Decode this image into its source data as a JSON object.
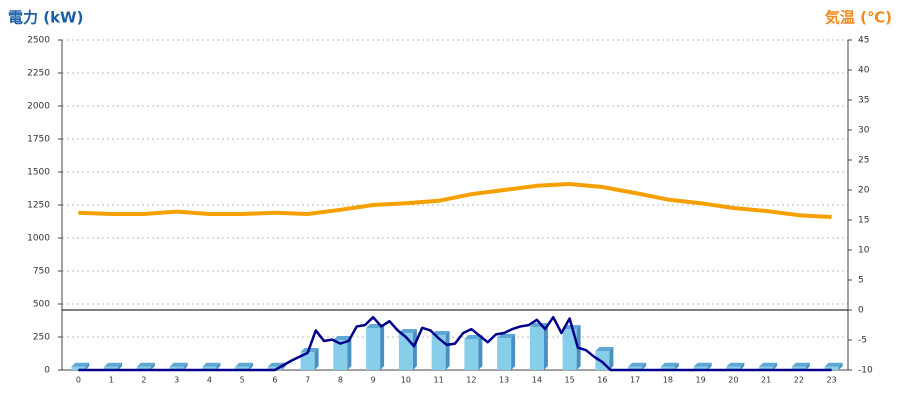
{
  "chart_data": {
    "type": "bar",
    "ylabel": "電力 (kW)",
    "y2label": "気温 (℃)",
    "categories": [
      "0",
      "1",
      "2",
      "3",
      "4",
      "5",
      "6",
      "7",
      "8",
      "9",
      "10",
      "11",
      "12",
      "13",
      "14",
      "15",
      "16",
      "17",
      "18",
      "19",
      "20",
      "21",
      "22",
      "23"
    ],
    "ylim": [
      0,
      2500
    ],
    "yticks": [
      0,
      250,
      500,
      750,
      1000,
      1250,
      1500,
      1750,
      2000,
      2250,
      2500
    ],
    "y2lim": [
      -10,
      45
    ],
    "y2ticks": [
      -10,
      -5,
      0,
      5,
      10,
      15,
      20,
      25,
      30,
      35,
      40,
      45
    ],
    "y2_refline": 0,
    "grid": true,
    "series": [
      {
        "type": "bar",
        "color": "#87ceeb",
        "values": [
          25,
          25,
          25,
          25,
          25,
          25,
          25,
          136,
          227,
          318,
          280,
          265,
          235,
          242,
          326,
          310,
          144,
          25,
          25,
          25,
          25,
          25,
          25,
          25
        ]
      },
      {
        "type": "line",
        "color": "#00008b",
        "x": [
          0,
          1,
          2,
          3,
          4,
          5,
          6,
          6.25,
          6.5,
          6.75,
          7,
          7.25,
          7.5,
          7.75,
          8,
          8.25,
          8.5,
          8.75,
          9,
          9.25,
          9.5,
          9.75,
          10,
          10.25,
          10.5,
          10.75,
          11,
          11.25,
          11.5,
          11.75,
          12,
          12.25,
          12.5,
          12.75,
          13,
          13.25,
          13.5,
          13.75,
          14,
          14.25,
          14.5,
          14.75,
          15,
          15.25,
          15.5,
          15.75,
          16,
          16.25,
          17,
          18,
          19,
          20,
          21,
          22,
          23
        ],
        "values": [
          0,
          0,
          0,
          0,
          0,
          0,
          0,
          35,
          70,
          100,
          130,
          300,
          220,
          230,
          200,
          220,
          330,
          340,
          400,
          330,
          370,
          300,
          250,
          180,
          320,
          300,
          240,
          190,
          200,
          280,
          310,
          260,
          210,
          270,
          280,
          310,
          330,
          340,
          380,
          310,
          400,
          280,
          390,
          170,
          150,
          100,
          60,
          0,
          0,
          0,
          0,
          0,
          0,
          0,
          0
        ]
      },
      {
        "type": "line",
        "axis": "y2",
        "color": "#f5a000",
        "values": [
          16.2,
          16.0,
          16.0,
          16.4,
          16.0,
          16.0,
          16.2,
          16.0,
          16.7,
          17.5,
          17.8,
          18.2,
          19.3,
          20.0,
          20.7,
          21.0,
          20.5,
          19.5,
          18.4,
          17.8,
          17.0,
          16.5,
          15.8,
          15.5
        ]
      }
    ]
  }
}
